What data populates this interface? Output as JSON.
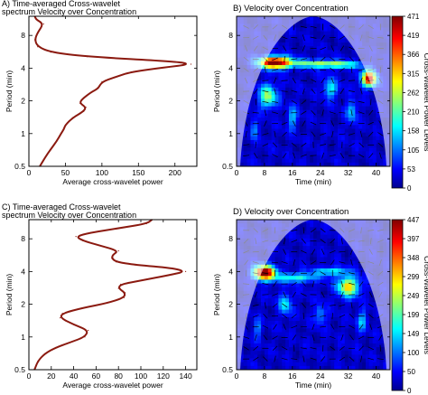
{
  "chart_data": [
    {
      "id": "A",
      "type": "line",
      "title_lines": [
        "A) Time-averaged Cross-wavelet",
        "spectrum Velocity over Concentration"
      ],
      "xlabel": "Average cross-wavelet power",
      "ylabel": "Period (min)",
      "xlim": [
        0,
        230
      ],
      "ylim": [
        0.5,
        12
      ],
      "yscale": "log2",
      "xticks": [
        "0",
        "50",
        "100",
        "150",
        "200"
      ],
      "yticks": [
        "0.5",
        "1",
        "2",
        "4",
        "8"
      ],
      "series_color": "#8B1A10",
      "series": [
        {
          "x": [
            15,
            22,
            30,
            38,
            44,
            48,
            50,
            60,
            75,
            78,
            70,
            72,
            85,
            95,
            100,
            118,
            140,
            185,
            222,
            200,
            80,
            30,
            12,
            8,
            12,
            20,
            10,
            8
          ],
          "y": [
            0.5,
            0.6,
            0.72,
            0.85,
            1.0,
            1.1,
            1.2,
            1.4,
            1.6,
            1.75,
            1.9,
            2.05,
            2.4,
            2.6,
            3.0,
            3.3,
            3.7,
            4.05,
            4.35,
            4.6,
            5.1,
            5.6,
            6.3,
            7.3,
            8.5,
            10.2,
            11.2,
            12
          ]
        }
      ]
    },
    {
      "id": "B",
      "type": "heatmap",
      "title": "B) Velocity over Concentration",
      "xlabel": "Time (min)",
      "ylabel": "Period (min)",
      "xlim": [
        0,
        44
      ],
      "ylim": [
        0.5,
        12
      ],
      "yscale": "log2",
      "xticks": [
        "0",
        "8",
        "16",
        "24",
        "32",
        "40"
      ],
      "yticks": [
        "0.5",
        "1",
        "2",
        "4",
        "8"
      ],
      "colorbar_label": "Cross-Wavelet Power Levels",
      "colorbar_ticks": [
        "0",
        "53",
        "105",
        "158",
        "210",
        "262",
        "315",
        "366",
        "419",
        "471"
      ],
      "blobs": [
        {
          "t": 11,
          "p": 4.5,
          "w": 4.5,
          "h": 0.18,
          "v": 1.0
        },
        {
          "t": 38,
          "p": 3.2,
          "w": 2.2,
          "h": 0.25,
          "v": 0.85
        },
        {
          "t": 9,
          "p": 2.2,
          "w": 2.5,
          "h": 0.35,
          "v": 0.45
        },
        {
          "t": 22,
          "p": 4.4,
          "w": 7.0,
          "h": 0.12,
          "v": 0.38
        },
        {
          "t": 30,
          "p": 4.3,
          "w": 6.0,
          "h": 0.12,
          "v": 0.34
        },
        {
          "t": 27,
          "p": 2.6,
          "w": 2.0,
          "h": 0.3,
          "v": 0.3
        },
        {
          "t": 16,
          "p": 1.4,
          "w": 1.3,
          "h": 0.35,
          "v": 0.25
        },
        {
          "t": 33,
          "p": 1.6,
          "w": 1.4,
          "h": 0.35,
          "v": 0.25
        },
        {
          "t": 5,
          "p": 1.1,
          "w": 1.0,
          "h": 0.3,
          "v": 0.22
        }
      ]
    },
    {
      "id": "C",
      "type": "line",
      "title_lines": [
        "C) Time-averaged Cross-wavelet",
        "spectrum Velocity over Concentration"
      ],
      "xlabel": "Average cross-wavelet power",
      "ylabel": "Period (min)",
      "xlim": [
        0,
        150
      ],
      "ylim": [
        0.5,
        12
      ],
      "yscale": "log2",
      "xticks": [
        "0",
        "20",
        "40",
        "60",
        "80",
        "100",
        "120",
        "140"
      ],
      "yticks": [
        "0.5",
        "1",
        "2",
        "4",
        "8"
      ],
      "series_color": "#8B1A10",
      "series": [
        {
          "x": [
            5,
            8,
            14,
            24,
            38,
            50,
            53,
            40,
            28,
            30,
            48,
            70,
            85,
            86,
            80,
            82,
            100,
            125,
            140,
            128,
            95,
            78,
            74,
            75,
            80,
            62,
            48,
            42,
            55,
            80,
            105,
            110
          ],
          "y": [
            0.5,
            0.6,
            0.7,
            0.8,
            0.9,
            1.0,
            1.15,
            1.3,
            1.5,
            1.65,
            1.85,
            2.05,
            2.3,
            2.55,
            2.8,
            3.05,
            3.3,
            3.7,
            4.0,
            4.3,
            4.6,
            4.9,
            5.3,
            5.7,
            6.2,
            7.0,
            7.7,
            8.4,
            9.1,
            10.0,
            11.0,
            12.0
          ]
        }
      ]
    },
    {
      "id": "D",
      "type": "heatmap",
      "title": "D) Velocity over Concentration",
      "xlabel": "Time (min)",
      "ylabel": "Period (min)",
      "xlim": [
        0,
        44
      ],
      "ylim": [
        0.5,
        12
      ],
      "yscale": "log2",
      "xticks": [
        "0",
        "8",
        "16",
        "24",
        "32",
        "40"
      ],
      "yticks": [
        "0.5",
        "1",
        "2",
        "4",
        "8"
      ],
      "colorbar_label": "Cross-Wavelet Power Levels",
      "colorbar_ticks": [
        "0",
        "50",
        "100",
        "149",
        "199",
        "249",
        "299",
        "348",
        "397",
        "447"
      ],
      "blobs": [
        {
          "t": 8,
          "p": 3.9,
          "w": 3.0,
          "h": 0.22,
          "v": 1.0
        },
        {
          "t": 32,
          "p": 2.9,
          "w": 3.0,
          "h": 0.3,
          "v": 0.6
        },
        {
          "t": 17,
          "p": 3.5,
          "w": 6.0,
          "h": 0.14,
          "v": 0.35
        },
        {
          "t": 27,
          "p": 4.0,
          "w": 5.0,
          "h": 0.12,
          "v": 0.32
        },
        {
          "t": 14,
          "p": 2.0,
          "w": 1.8,
          "h": 0.3,
          "v": 0.3
        },
        {
          "t": 24,
          "p": 1.6,
          "w": 1.5,
          "h": 0.3,
          "v": 0.22
        },
        {
          "t": 36,
          "p": 1.4,
          "w": 1.3,
          "h": 0.3,
          "v": 0.25
        },
        {
          "t": 6,
          "p": 1.2,
          "w": 1.0,
          "h": 0.3,
          "v": 0.2
        }
      ]
    }
  ]
}
